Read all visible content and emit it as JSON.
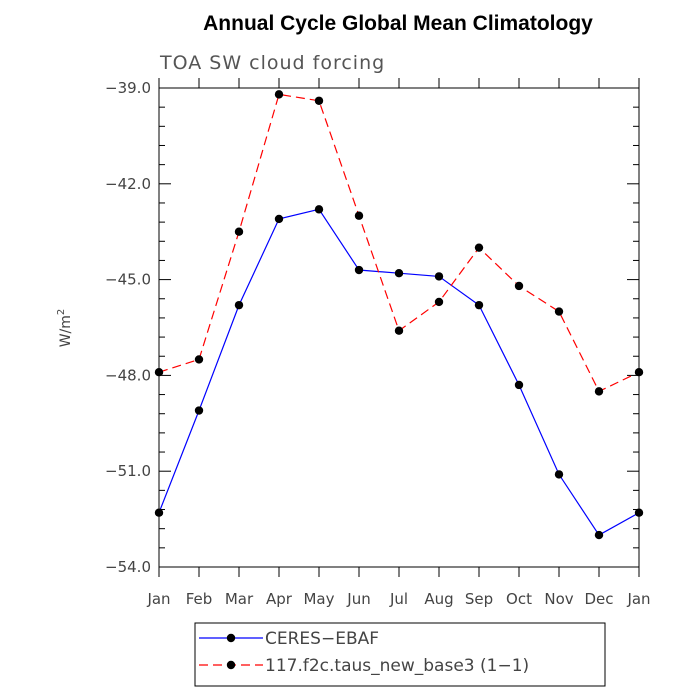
{
  "chart_data": {
    "type": "line",
    "title": "Annual Cycle Global Mean Climatology",
    "subtitle": "TOA SW cloud forcing",
    "ylabel": "W/m",
    "ylabel_sup": "2",
    "ylim": [
      -54.0,
      -39.0
    ],
    "yticks": [
      -39.0,
      -42.0,
      -45.0,
      -48.0,
      -51.0,
      -54.0
    ],
    "ytick_labels": [
      "−39.0",
      "−42.0",
      "−45.0",
      "−48.0",
      "−51.0",
      "−54.0"
    ],
    "categories": [
      "Jan",
      "Feb",
      "Mar",
      "Apr",
      "May",
      "Jun",
      "Jul",
      "Aug",
      "Sep",
      "Oct",
      "Nov",
      "Dec",
      "Jan"
    ],
    "series": [
      {
        "name": "CERES−EBAF",
        "color": "#0000ff",
        "dash": "solid",
        "values": [
          -52.3,
          -49.1,
          -45.8,
          -43.1,
          -42.8,
          -44.7,
          -44.8,
          -44.9,
          -45.8,
          -48.3,
          -51.1,
          -53.0,
          -52.3
        ]
      },
      {
        "name": "117.f2c.taus_new_base3 (1−1)",
        "color": "#ff0000",
        "dash": "dashed",
        "values": [
          -47.9,
          -47.5,
          -43.5,
          -39.2,
          -39.4,
          -43.0,
          -46.6,
          -45.7,
          -44.0,
          -45.2,
          -46.0,
          -48.5,
          -47.9
        ]
      }
    ],
    "legend_position": "bottom"
  }
}
